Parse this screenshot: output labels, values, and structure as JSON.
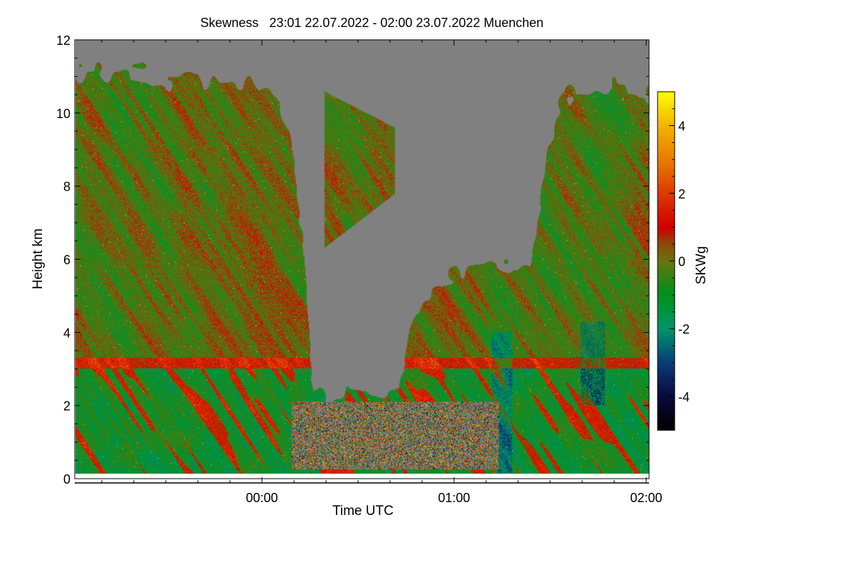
{
  "chart_data": {
    "type": "heatmap",
    "title": "Skewness   23:01 22.07.2022 - 02:00 23.07.2022 Muenchen",
    "xlabel": "Time UTC",
    "ylabel": "Height km",
    "colorbar_label": "SKWg",
    "x_range": [
      "23:01",
      "02:00"
    ],
    "x_ticks": [
      "00:00",
      "01:00",
      "02:00"
    ],
    "x_minor_tick_interval_minutes": 10,
    "ylim": [
      0,
      12
    ],
    "y_ticks": [
      0,
      2,
      4,
      6,
      8,
      10,
      12
    ],
    "colorbar_range": [
      -5,
      5
    ],
    "colorbar_ticks": [
      -4,
      -2,
      0,
      2,
      4
    ],
    "colormap": [
      {
        "value": -5,
        "color": "#000000"
      },
      {
        "value": -4,
        "color": "#0a0a40"
      },
      {
        "value": -3,
        "color": "#0a3e78"
      },
      {
        "value": -2,
        "color": "#00966a"
      },
      {
        "value": -1,
        "color": "#00901a"
      },
      {
        "value": 0,
        "color": "#6a7410"
      },
      {
        "value": 0.5,
        "color": "#8c4a0a"
      },
      {
        "value": 1,
        "color": "#d00000"
      },
      {
        "value": 2,
        "color": "#dc3a00"
      },
      {
        "value": 3,
        "color": "#ea7c00"
      },
      {
        "value": 4,
        "color": "#f2b400"
      },
      {
        "value": 5,
        "color": "#ffff00"
      }
    ],
    "missing_value_color": "#808080",
    "grid": false
  }
}
